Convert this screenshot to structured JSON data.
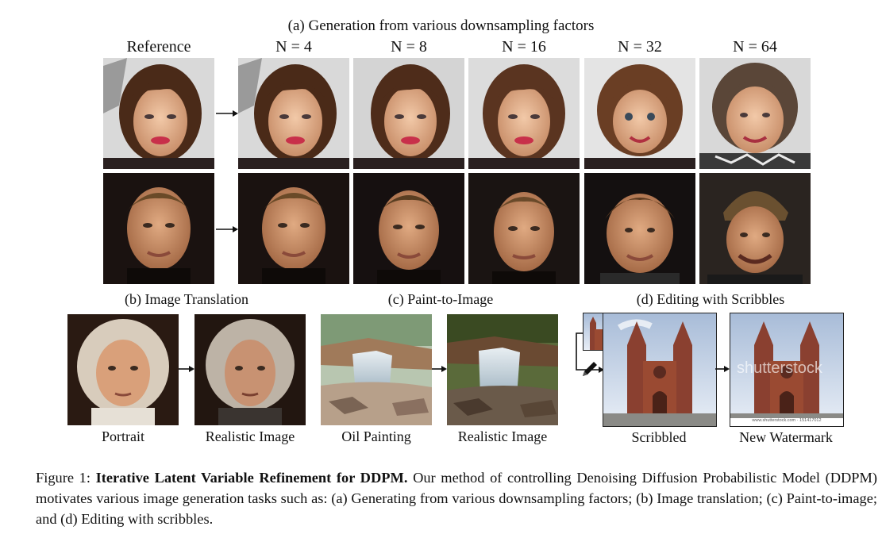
{
  "section_a": {
    "title": "(a) Generation from various downsampling factors",
    "columns": [
      "Reference",
      "N = 4",
      "N = 8",
      "N = 16",
      "N = 32",
      "N = 64"
    ]
  },
  "section_b": {
    "title": "(b) Image Translation",
    "captions": [
      "Portrait",
      "Realistic Image"
    ]
  },
  "section_c": {
    "title": "(c) Paint-to-Image",
    "captions": [
      "Oil Painting",
      "Realistic Image"
    ]
  },
  "section_d": {
    "title": "(d) Editing with Scribbles",
    "captions": [
      "Scribbled",
      "New Watermark"
    ],
    "watermark_text": "shutterstock",
    "footer_text": "www.shutterstock.com · 151417012"
  },
  "caption": {
    "label": "Figure 1: ",
    "bold": "Iterative Latent Variable Refinement for DDPM.",
    "text": " Our method of controlling Denoising Diffusion Probabilistic Model (DDPM) motivates various image generation tasks such as: (a) Generating from various downsampling factors; (b) Image translation; (c) Paint-to-image; and (d) Editing with scribbles."
  },
  "colors": {
    "hair_brown": "#4a2a18",
    "skin": "#e9b896",
    "lips": "#c8304a",
    "dark_bg": "#1a1210",
    "brick": "#9a4a32",
    "sky": "#c9d6e6"
  }
}
